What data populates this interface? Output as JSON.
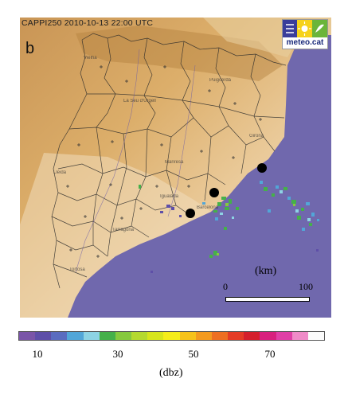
{
  "header": {
    "title": "CAPPI250 2010-10-13 22:00 UTC",
    "panel_letter": "b"
  },
  "logo": {
    "text": "meteo.cat",
    "icon": "meteo-weather-logo-icon"
  },
  "place_labels": [
    "Vielha",
    "La Seu d'Urgell",
    "Puigcerdà",
    "Manresa",
    "Lleida",
    "Igualada",
    "Tarragona",
    "Tortosa",
    "Girona",
    "Barcelona"
  ],
  "scale": {
    "unit_label": "(km)",
    "start": "0",
    "end": "100"
  },
  "colorbar": {
    "colors": [
      "#7a55a8",
      "#5e4fa8",
      "#5a6cc0",
      "#52a6d8",
      "#8dd3e4",
      "#45b04a",
      "#86c93e",
      "#b5d92f",
      "#d7e51c",
      "#f5ed1a",
      "#f6c21a",
      "#f39a1f",
      "#ee6f22",
      "#e43c26",
      "#d41f2c",
      "#d8207e",
      "#e03fa6",
      "#f08bc8",
      "#fbfbfb"
    ],
    "ticks": [
      "10",
      "30",
      "50",
      "70"
    ],
    "unit": "(dbz)"
  },
  "colors": {
    "sea": "#7068ad",
    "land_light": "#f2e2c8",
    "land_mid": "#d9a85c",
    "land_dark": "#b07a3a"
  }
}
